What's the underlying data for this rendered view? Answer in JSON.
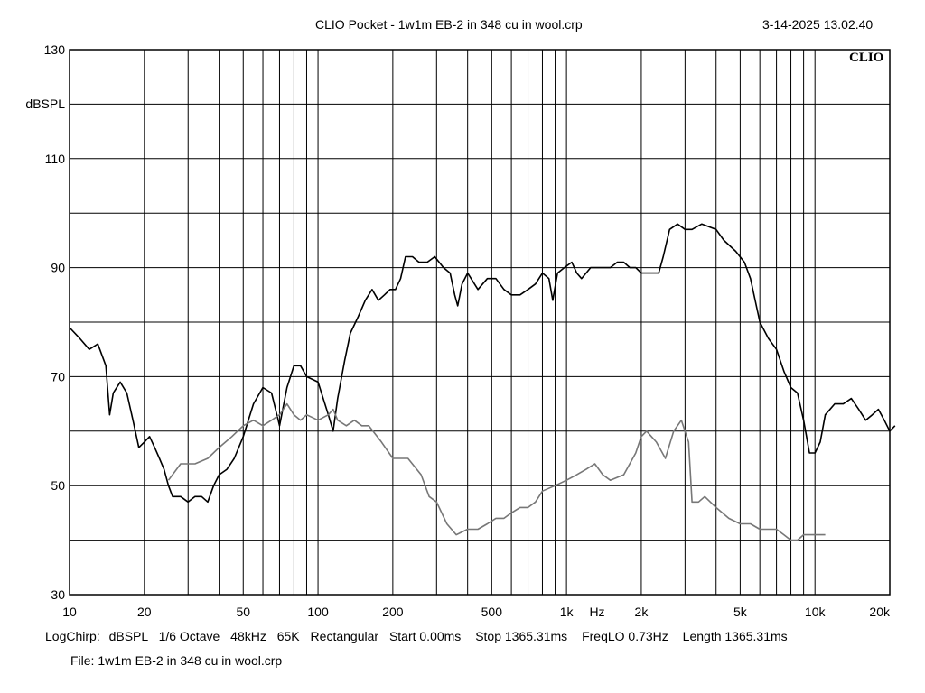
{
  "header": {
    "title": "CLIO Pocket - 1w1m EB-2 in 348 cu in wool.crp",
    "datetime": "3-14-2025 13.02.40"
  },
  "logo": "CLIO",
  "footer": {
    "settings": [
      "LogChirp:",
      "dBSPL",
      "1/6 Octave",
      "48kHz",
      "65K",
      "Rectangular",
      "Start 0.00ms",
      "Stop 1365.31ms",
      "FreqLO 0.73Hz",
      "Length 1365.31ms"
    ],
    "file": "File: 1w1m EB-2 in 348 cu in wool.crp"
  },
  "chart_data": {
    "type": "line",
    "xscale": "log",
    "xlim": [
      10,
      20000
    ],
    "ylim": [
      30,
      130
    ],
    "ylabel": "dBSPL",
    "xlabel": "Hz",
    "grid": true,
    "x_ticks": [
      {
        "value": 10,
        "label": "10"
      },
      {
        "value": 20,
        "label": "20"
      },
      {
        "value": 50,
        "label": "50"
      },
      {
        "value": 100,
        "label": "100"
      },
      {
        "value": 200,
        "label": "200"
      },
      {
        "value": 500,
        "label": "500"
      },
      {
        "value": 1000,
        "label": "1k"
      },
      {
        "value": 2000,
        "label": "2k"
      },
      {
        "value": 5000,
        "label": "5k"
      },
      {
        "value": 10000,
        "label": "10k"
      },
      {
        "value": 20000,
        "label": "20k"
      }
    ],
    "y_ticks": [
      {
        "value": 130,
        "label": "130"
      },
      {
        "value": 110,
        "label": "110"
      },
      {
        "value": 90,
        "label": "90"
      },
      {
        "value": 70,
        "label": "70"
      },
      {
        "value": 50,
        "label": "50"
      },
      {
        "value": 30,
        "label": "30"
      }
    ],
    "series": [
      {
        "color": "#000000",
        "points": [
          [
            10,
            79
          ],
          [
            11,
            77
          ],
          [
            12,
            75
          ],
          [
            13,
            76
          ],
          [
            14,
            72
          ],
          [
            14.5,
            63
          ],
          [
            15,
            67
          ],
          [
            16,
            69
          ],
          [
            17,
            67
          ],
          [
            18,
            62
          ],
          [
            19,
            57
          ],
          [
            20,
            58
          ],
          [
            21,
            59
          ],
          [
            22,
            57
          ],
          [
            23,
            55
          ],
          [
            24,
            53
          ],
          [
            25,
            50
          ],
          [
            26,
            48
          ],
          [
            28,
            48
          ],
          [
            30,
            47
          ],
          [
            32,
            48
          ],
          [
            34,
            48
          ],
          [
            36,
            47
          ],
          [
            38,
            50
          ],
          [
            40,
            52
          ],
          [
            43,
            53
          ],
          [
            46,
            55
          ],
          [
            50,
            59
          ],
          [
            55,
            65
          ],
          [
            60,
            68
          ],
          [
            65,
            67
          ],
          [
            70,
            61
          ],
          [
            75,
            68
          ],
          [
            80,
            72
          ],
          [
            85,
            72
          ],
          [
            90,
            70
          ],
          [
            100,
            69
          ],
          [
            110,
            63
          ],
          [
            115,
            60
          ],
          [
            120,
            66
          ],
          [
            128,
            73
          ],
          [
            135,
            78
          ],
          [
            145,
            81
          ],
          [
            155,
            84
          ],
          [
            165,
            86
          ],
          [
            175,
            84
          ],
          [
            185,
            85
          ],
          [
            195,
            86
          ],
          [
            205,
            86
          ],
          [
            215,
            88
          ],
          [
            225,
            92
          ],
          [
            240,
            92
          ],
          [
            255,
            91
          ],
          [
            275,
            91
          ],
          [
            295,
            92
          ],
          [
            320,
            90
          ],
          [
            340,
            89
          ],
          [
            355,
            85
          ],
          [
            365,
            83
          ],
          [
            380,
            87
          ],
          [
            400,
            89
          ],
          [
            440,
            86
          ],
          [
            480,
            88
          ],
          [
            520,
            88
          ],
          [
            560,
            86
          ],
          [
            600,
            85
          ],
          [
            650,
            85
          ],
          [
            700,
            86
          ],
          [
            750,
            87
          ],
          [
            800,
            89
          ],
          [
            850,
            88
          ],
          [
            880,
            84
          ],
          [
            920,
            89
          ],
          [
            980,
            90
          ],
          [
            1050,
            91
          ],
          [
            1100,
            89
          ],
          [
            1150,
            88
          ],
          [
            1250,
            90
          ],
          [
            1400,
            90
          ],
          [
            1500,
            90
          ],
          [
            1600,
            91
          ],
          [
            1700,
            91
          ],
          [
            1800,
            90
          ],
          [
            1900,
            90
          ],
          [
            2000,
            89
          ],
          [
            2200,
            89
          ],
          [
            2350,
            89
          ],
          [
            2450,
            92
          ],
          [
            2600,
            97
          ],
          [
            2800,
            98
          ],
          [
            3000,
            97
          ],
          [
            3200,
            97
          ],
          [
            3500,
            98
          ],
          [
            4000,
            97
          ],
          [
            4300,
            95
          ],
          [
            4800,
            93
          ],
          [
            5200,
            91
          ],
          [
            5500,
            88
          ],
          [
            6000,
            80
          ],
          [
            6500,
            77
          ],
          [
            7000,
            75
          ],
          [
            7500,
            71
          ],
          [
            8000,
            68
          ],
          [
            8500,
            67
          ],
          [
            9000,
            62
          ],
          [
            9500,
            56
          ],
          [
            10000,
            56
          ],
          [
            10500,
            58
          ],
          [
            11000,
            63
          ],
          [
            12000,
            65
          ],
          [
            13000,
            65
          ],
          [
            14000,
            66
          ],
          [
            15000,
            64
          ],
          [
            16000,
            62
          ],
          [
            17000,
            63
          ],
          [
            18000,
            64
          ],
          [
            19000,
            62
          ],
          [
            20000,
            60
          ],
          [
            21000,
            61
          ]
        ]
      },
      {
        "color": "#777777",
        "points": [
          [
            25,
            51
          ],
          [
            28,
            54
          ],
          [
            32,
            54
          ],
          [
            36,
            55
          ],
          [
            40,
            57
          ],
          [
            45,
            59
          ],
          [
            50,
            61
          ],
          [
            55,
            62
          ],
          [
            60,
            61
          ],
          [
            65,
            62
          ],
          [
            70,
            63
          ],
          [
            75,
            65
          ],
          [
            80,
            63
          ],
          [
            85,
            62
          ],
          [
            90,
            63
          ],
          [
            100,
            62
          ],
          [
            110,
            63
          ],
          [
            115,
            64
          ],
          [
            120,
            62
          ],
          [
            130,
            61
          ],
          [
            140,
            62
          ],
          [
            150,
            61
          ],
          [
            160,
            61
          ],
          [
            180,
            58
          ],
          [
            200,
            55
          ],
          [
            230,
            55
          ],
          [
            260,
            52
          ],
          [
            280,
            48
          ],
          [
            300,
            47
          ],
          [
            330,
            43
          ],
          [
            360,
            41
          ],
          [
            400,
            42
          ],
          [
            440,
            42
          ],
          [
            480,
            43
          ],
          [
            520,
            44
          ],
          [
            560,
            44
          ],
          [
            600,
            45
          ],
          [
            650,
            46
          ],
          [
            700,
            46
          ],
          [
            750,
            47
          ],
          [
            800,
            49
          ],
          [
            900,
            50
          ],
          [
            1000,
            51
          ],
          [
            1100,
            52
          ],
          [
            1200,
            53
          ],
          [
            1300,
            54
          ],
          [
            1400,
            52
          ],
          [
            1500,
            51
          ],
          [
            1700,
            52
          ],
          [
            1900,
            56
          ],
          [
            2000,
            59
          ],
          [
            2100,
            60
          ],
          [
            2300,
            58
          ],
          [
            2500,
            55
          ],
          [
            2700,
            60
          ],
          [
            2900,
            62
          ],
          [
            3100,
            58
          ],
          [
            3200,
            47
          ],
          [
            3400,
            47
          ],
          [
            3600,
            48
          ],
          [
            4000,
            46
          ],
          [
            4500,
            44
          ],
          [
            5000,
            43
          ],
          [
            5500,
            43
          ],
          [
            6000,
            42
          ],
          [
            6500,
            42
          ],
          [
            7000,
            42
          ],
          [
            7500,
            41
          ],
          [
            8000,
            40
          ],
          [
            8500,
            40
          ],
          [
            9000,
            41
          ],
          [
            10000,
            41
          ],
          [
            10500,
            41
          ],
          [
            11000,
            41
          ]
        ]
      }
    ]
  }
}
